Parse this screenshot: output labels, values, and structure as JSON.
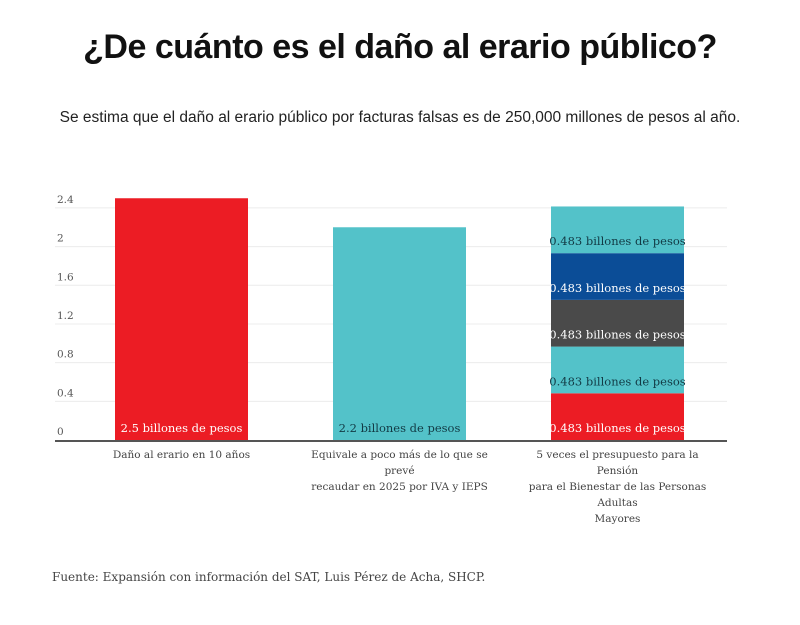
{
  "header": {
    "title": "¿De cuánto es el daño al erario público?",
    "subtitle": "Se estima que el daño al erario público por facturas falsas es de 250,000 millones de pesos al año."
  },
  "chart_data": {
    "type": "bar",
    "stacked": true,
    "title": "¿De cuánto es el daño al erario público?",
    "subtitle": "Se estima que el daño al erario público por facturas falsas es de 250,000 millones de pesos al año.",
    "xlabel": "",
    "ylabel": "",
    "unit": "billones de pesos",
    "ylim": [
      0,
      2.5
    ],
    "yticks": [
      0,
      0.4,
      0.8,
      1.2,
      1.6,
      2,
      2.4
    ],
    "ytick_labels": [
      "0",
      "0.4",
      "0.8",
      "1.2",
      "1.6",
      "2",
      "2.4"
    ],
    "grid": true,
    "legend": "none",
    "categories": [
      "Daño al erario en 10 años",
      "Equivale a poco más de lo que se prevé recaudar en 2025 por IVA y IEPS",
      "5 veces el presupuesto para la Pensión para el Bienestar de las Personas Adultas Mayores"
    ],
    "category_label_lines": [
      [
        "Daño al erario en 10 años"
      ],
      [
        "Equivale a poco más de lo que se prevé",
        "recaudar en 2025 por IVA y IEPS"
      ],
      [
        "5 veces el presupuesto para la Pensión",
        "para el Bienestar de las Personas Adultas",
        "Mayores"
      ]
    ],
    "bars": [
      {
        "category": "Daño al erario en 10 años",
        "segments": [
          {
            "value": 2.5,
            "color": "#ec1c24",
            "label": "2.5 billones de pesos",
            "label_color": "#ffffff"
          }
        ]
      },
      {
        "category": "Equivale a poco más de lo que se prevé recaudar en 2025 por IVA y IEPS",
        "segments": [
          {
            "value": 2.2,
            "color": "#53c2c9",
            "label": "2.2 billones de pesos",
            "label_color": "#123a44"
          }
        ]
      },
      {
        "category": "5 veces el presupuesto para la Pensión para el Bienestar de las Personas Adultas Mayores",
        "segments": [
          {
            "value": 0.483,
            "color": "#ec1c24",
            "label": "0.483 billones de pesos",
            "label_color": "#ffffff"
          },
          {
            "value": 0.483,
            "color": "#53c2c9",
            "label": "0.483 billones de pesos",
            "label_color": "#123a44"
          },
          {
            "value": 0.483,
            "color": "#4a4a4a",
            "label": "0.483 billones de pesos",
            "label_color": "#ffffff"
          },
          {
            "value": 0.483,
            "color": "#0b4d97",
            "label": "0.483 billones de pesos",
            "label_color": "#ffffff"
          },
          {
            "value": 0.483,
            "color": "#53c2c9",
            "label": "0.483 billones de pesos",
            "label_color": "#123a44"
          }
        ]
      }
    ]
  },
  "footer": {
    "source": "Fuente: Expansión con información del SAT, Luis Pérez de Acha, SHCP."
  }
}
